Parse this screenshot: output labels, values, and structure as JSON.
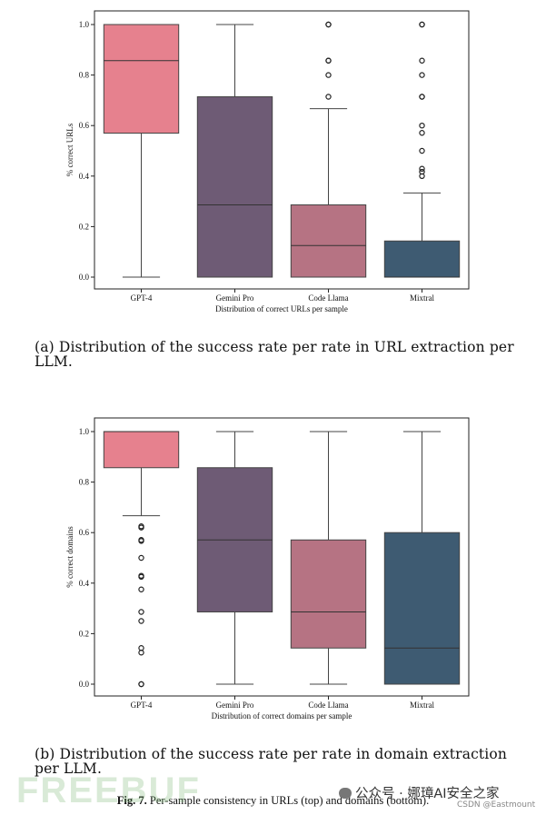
{
  "chart_data": [
    {
      "type": "box",
      "categories": [
        "GPT-4",
        "Gemini Pro",
        "Code Llama",
        "Mixtral"
      ],
      "xlabel": "Distribution of correct URLs per sample",
      "ylabel": "% correct URLs",
      "ylim": [
        0,
        1.0
      ],
      "yticks": [
        "0.0",
        "0.2",
        "0.4",
        "0.6",
        "0.8",
        "1.0"
      ],
      "grid": false,
      "colors": [
        "#e6818e",
        "#6e5b75",
        "#b67383",
        "#3e5b72"
      ],
      "boxes": [
        {
          "category": "GPT-4",
          "q1": 0.57,
          "median": 0.857,
          "q3": 1.0,
          "whisker_low": 0.0,
          "whisker_high": 1.0,
          "outliers": []
        },
        {
          "category": "Gemini Pro",
          "q1": 0.0,
          "median": 0.286,
          "q3": 0.714,
          "whisker_low": 0.0,
          "whisker_high": 1.0,
          "outliers": []
        },
        {
          "category": "Code Llama",
          "q1": 0.0,
          "median": 0.125,
          "q3": 0.286,
          "whisker_low": 0.0,
          "whisker_high": 0.667,
          "outliers": [
            0.714,
            0.8,
            0.857,
            0.857,
            1.0,
            1.0
          ]
        },
        {
          "category": "Mixtral",
          "q1": 0.0,
          "median": 0.0,
          "q3": 0.143,
          "whisker_low": 0.0,
          "whisker_high": 0.333,
          "outliers": [
            0.4,
            0.417,
            0.429,
            0.5,
            0.571,
            0.6,
            0.714,
            0.714,
            0.8,
            0.857,
            1.0,
            1.0
          ]
        }
      ]
    },
    {
      "type": "box",
      "categories": [
        "GPT-4",
        "Gemini Pro",
        "Code Llama",
        "Mixtral"
      ],
      "xlabel": "Distribution of correct domains per sample",
      "ylabel": "% correct domains",
      "ylim": [
        0,
        1.0
      ],
      "yticks": [
        "0.0",
        "0.2",
        "0.4",
        "0.6",
        "0.8",
        "1.0"
      ],
      "grid": false,
      "colors": [
        "#e6818e",
        "#6e5b75",
        "#b67383",
        "#3e5b72"
      ],
      "boxes": [
        {
          "category": "GPT-4",
          "q1": 0.857,
          "median": 1.0,
          "q3": 1.0,
          "whisker_low": 0.667,
          "whisker_high": 1.0,
          "outliers": [
            0.625,
            0.62,
            0.571,
            0.567,
            0.5,
            0.429,
            0.425,
            0.375,
            0.286,
            0.25,
            0.143,
            0.125,
            0.0,
            0.0
          ]
        },
        {
          "category": "Gemini Pro",
          "q1": 0.286,
          "median": 0.571,
          "q3": 0.857,
          "whisker_low": 0.0,
          "whisker_high": 1.0,
          "outliers": []
        },
        {
          "category": "Code Llama",
          "q1": 0.143,
          "median": 0.286,
          "q3": 0.571,
          "whisker_low": 0.0,
          "whisker_high": 1.0,
          "outliers": []
        },
        {
          "category": "Mixtral",
          "q1": 0.0,
          "median": 0.143,
          "q3": 0.6,
          "whisker_low": 0.0,
          "whisker_high": 1.0,
          "outliers": []
        }
      ]
    }
  ],
  "captions": {
    "a": "(a) Distribution of the success rate per rate in URL extraction per LLM.",
    "b": "(b) Distribution of the success rate per rate in domain extraction per LLM.",
    "figure_label": "Fig. 7.",
    "figure_text": "Per-sample consistency in URLs (top) and domains (bottom)."
  },
  "watermarks": {
    "left": "FREEBUF",
    "right": "公众号 · 娜璋AI安全之家",
    "right_small": "CSDN @Eastmount"
  }
}
